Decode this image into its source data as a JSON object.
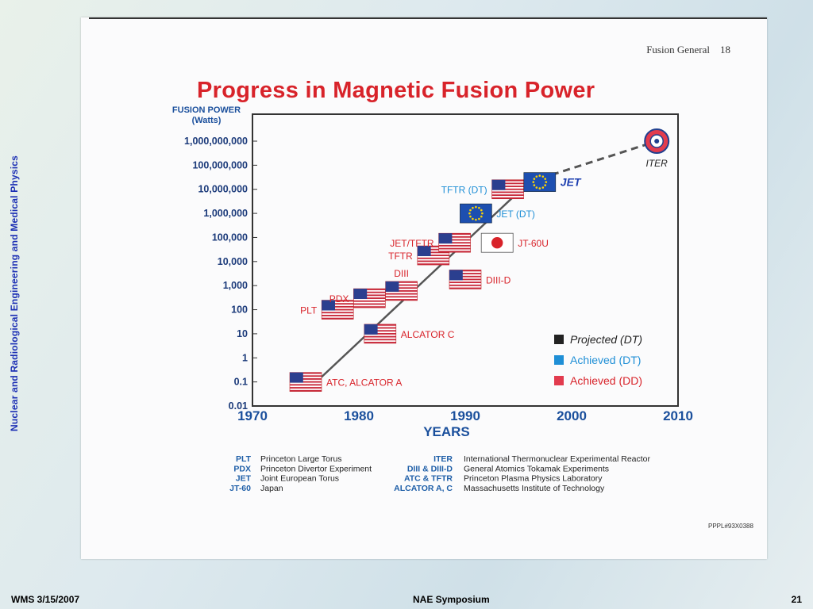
{
  "sidebar_text": "Nuclear and Radiological Engineering and Medical Physics",
  "header": {
    "section": "Fusion General",
    "page": "18"
  },
  "title": "Progress in Magnetic Fusion Power",
  "footer": {
    "left": "WMS 3/15/2007",
    "center": "NAE Symposium",
    "right": "21"
  },
  "credit": "PPPL#93X0388",
  "colors": {
    "title": "#d8232a",
    "label_red": "#d8232a",
    "label_blue": "#1f8fd6",
    "projected": "#222222",
    "achieved_dt": "#1f8fd6",
    "achieved_dd": "#e23b4e",
    "axis_label": "#1a4f9c"
  },
  "chart_data": {
    "type": "scatter",
    "title": "Progress in Magnetic Fusion Power",
    "ylabel": "FUSION POWER (Watts)",
    "xlabel": "YEARS",
    "yscale": "log",
    "xlim": [
      1970,
      2010
    ],
    "ylim": [
      0.01,
      1000000000
    ],
    "x_ticks": [
      "1970",
      "1980",
      "1990",
      "2000",
      "2010"
    ],
    "y_ticks": [
      {
        "v": 0.01,
        "label": "0.01"
      },
      {
        "v": 0.1,
        "label": "0.1"
      },
      {
        "v": 1,
        "label": "1"
      },
      {
        "v": 10,
        "label": "10"
      },
      {
        "v": 100,
        "label": "100"
      },
      {
        "v": 1000,
        "label": "1,000"
      },
      {
        "v": 10000,
        "label": "10,000"
      },
      {
        "v": 100000,
        "label": "100,000"
      },
      {
        "v": 1000000,
        "label": "1,000,000"
      },
      {
        "v": 10000000,
        "label": "10,000,000"
      },
      {
        "v": 100000000,
        "label": "100,000,000"
      },
      {
        "v": 1000000000,
        "label": "1,000,000,000"
      }
    ],
    "trend_line": {
      "x": [
        1976,
        1996
      ],
      "y": [
        0.1,
        20000000
      ]
    },
    "projection_line": {
      "x": [
        1996,
        2008
      ],
      "y": [
        20000000,
        1000000000
      ]
    },
    "points": [
      {
        "label": "ATC, ALCATOR A",
        "x": 1975,
        "y": 0.1,
        "flag": "us",
        "status": "Achieved (DD)",
        "label_side": "right"
      },
      {
        "label": "PLT",
        "x": 1978,
        "y": 100,
        "flag": "us",
        "status": "Achieved (DD)",
        "label_side": "left"
      },
      {
        "label": "ALCATOR C",
        "x": 1982,
        "y": 10,
        "flag": "us",
        "status": "Achieved (DD)",
        "label_side": "right"
      },
      {
        "label": "PDX",
        "x": 1981,
        "y": 300,
        "flag": "us",
        "status": "Achieved (DD)",
        "label_side": "left"
      },
      {
        "label": "DIII",
        "x": 1984,
        "y": 600,
        "flag": "us",
        "status": "Achieved (DD)",
        "label_side": "above"
      },
      {
        "label": "TFTR",
        "x": 1987,
        "y": 18000,
        "flag": "us",
        "status": "Achieved (DD)",
        "label_side": "left"
      },
      {
        "label": "JET/TFTR",
        "x": 1989,
        "y": 60000,
        "flag": "us",
        "status": "Achieved (DD)",
        "label_side": "left"
      },
      {
        "label": "DIII-D",
        "x": 1990,
        "y": 1800,
        "flag": "us",
        "status": "Achieved (DD)",
        "label_side": "right"
      },
      {
        "label": "JT-60U",
        "x": 1993,
        "y": 60000,
        "flag": "jp",
        "status": "Achieved (DD)",
        "label_side": "right"
      },
      {
        "label": "JET (DT)",
        "x": 1991,
        "y": 1000000,
        "flag": "eu",
        "status": "Achieved (DT)",
        "label_side": "right"
      },
      {
        "label": "TFTR (DT)",
        "x": 1994,
        "y": 10000000,
        "flag": "us",
        "status": "Achieved (DT)",
        "label_side": "left"
      },
      {
        "label": "JET",
        "x": 1997,
        "y": 20000000,
        "flag": "eu",
        "status": "Achieved (DT)",
        "label_side": "right"
      },
      {
        "label": "ITER",
        "x": 2008,
        "y": 1000000000,
        "flag": "iter",
        "status": "Projected (DT)",
        "label_side": "below"
      }
    ],
    "legend": {
      "position": "bottom-right",
      "items": [
        {
          "name": "Projected (DT)",
          "color": "#222222"
        },
        {
          "name": "Achieved (DT)",
          "color": "#1f8fd6"
        },
        {
          "name": "Achieved (DD)",
          "color": "#e23b4e"
        }
      ]
    },
    "abbreviations_left": [
      {
        "abbr": "PLT",
        "desc": "Princeton Large Torus"
      },
      {
        "abbr": "PDX",
        "desc": "Princeton Divertor Experiment"
      },
      {
        "abbr": "JET",
        "desc": "Joint European Torus"
      },
      {
        "abbr": "JT-60",
        "desc": "Japan"
      }
    ],
    "abbreviations_right": [
      {
        "abbr": "ITER",
        "desc": "International Thermonuclear Experimental Reactor"
      },
      {
        "abbr": "DIII & DIII-D",
        "desc": "General Atomics Tokamak Experiments"
      },
      {
        "abbr": "ATC & TFTR",
        "desc": "Princeton Plasma Physics Laboratory"
      },
      {
        "abbr": "ALCATOR A, C",
        "desc": "Massachusetts Institute of Technology"
      }
    ]
  }
}
